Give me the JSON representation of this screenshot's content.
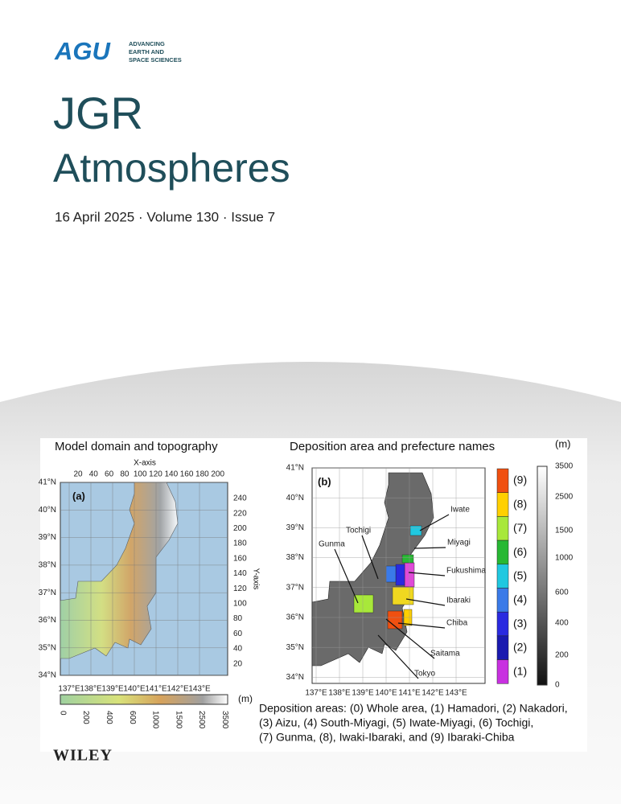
{
  "publisher": {
    "logo": "AGU",
    "tagline": [
      "ADVANCING",
      "EARTH AND",
      "SPACE SCIENCES"
    ]
  },
  "journal": {
    "title": [
      "JGR",
      "Atmospheres"
    ],
    "issue": "16 April 2025 · Volume 130 · Issue 7"
  },
  "figure_a": {
    "title": "Model domain and topography",
    "panel": "(a)",
    "x_axis_label": "X-axis",
    "y_axis_label": "Y-axis",
    "x_ticks": [
      "20",
      "40",
      "60",
      "80",
      "100",
      "120",
      "140",
      "160",
      "180",
      "200"
    ],
    "y_ticks": [
      "240",
      "220",
      "200",
      "180",
      "160",
      "140",
      "120",
      "100",
      "80",
      "60",
      "40",
      "20"
    ],
    "lat_labels": [
      "41°N",
      "40°N",
      "39°N",
      "38°N",
      "37°N",
      "36°N",
      "35°N",
      "34°N"
    ],
    "lon_labels": [
      "137°E",
      "138°E",
      "139°E",
      "140°E",
      "141°E",
      "142°E",
      "143°E"
    ],
    "colorbar_ticks": [
      "0",
      "200",
      "400",
      "600",
      "1000",
      "1500",
      "2500",
      "3500"
    ],
    "colorbar_unit": "(m)"
  },
  "figure_b": {
    "title": "Deposition area and prefecture names",
    "panel": "(b)",
    "lat_labels": [
      "41°N",
      "40°N",
      "39°N",
      "38°N",
      "37°N",
      "36°N",
      "35°N",
      "34°N"
    ],
    "lon_labels": [
      "137°E",
      "138°E",
      "139°E",
      "140°E",
      "141°E",
      "142°E",
      "143°E"
    ],
    "prefectures": [
      "Iwate",
      "Miyagi",
      "Tochigi",
      "Gunma",
      "Fukushima",
      "Ibaraki",
      "Chiba",
      "Saitama",
      "Tokyo"
    ],
    "area_legend": [
      "(9)",
      "(8)",
      "(7)",
      "(6)",
      "(5)",
      "(4)",
      "(3)",
      "(2)",
      "(1)"
    ],
    "colorbar_ticks": [
      "3500",
      "2500",
      "1500",
      "1000",
      "600",
      "400",
      "200",
      "0"
    ],
    "colorbar_unit": "(m)"
  },
  "caption": [
    "Deposition areas: (0) Whole area, (1) Hamadori, (2) Nakadori,",
    "(3) Aizu, (4) South-Miyagi, (5) Iwate-Miyagi, (6) Tochigi,",
    "(7) Gunma, (8), Iwaki-Ibaraki, and (9) Ibaraki-Chiba"
  ],
  "footer": "WILEY"
}
